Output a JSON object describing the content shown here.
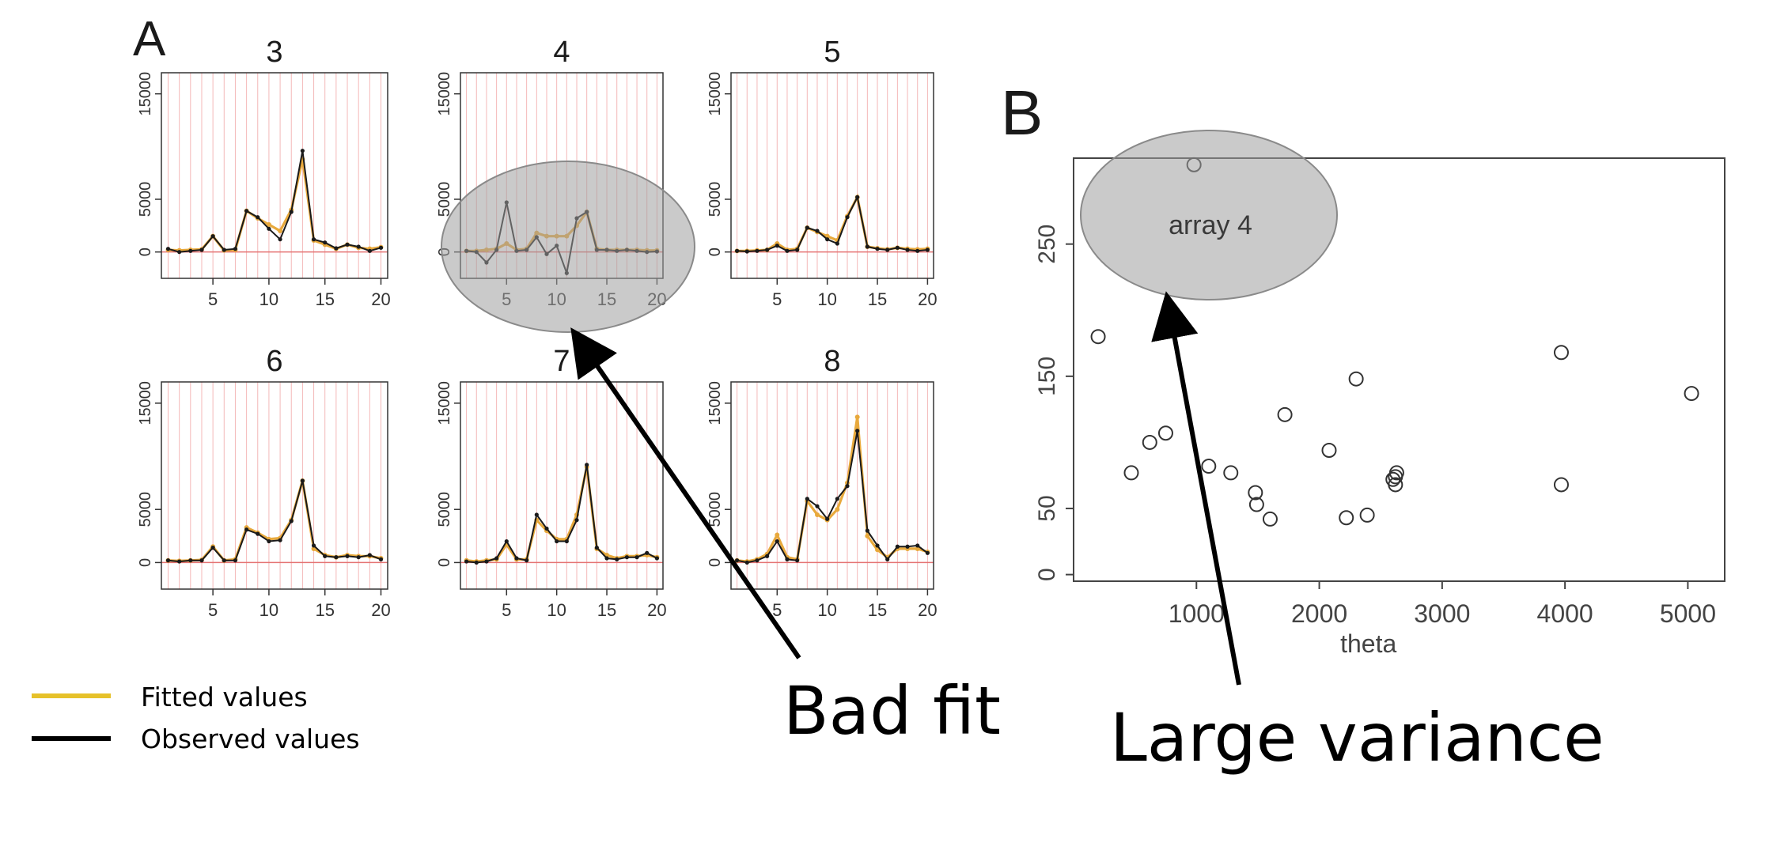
{
  "panels": {
    "a": {
      "label": "A"
    },
    "b": {
      "label": "B"
    }
  },
  "colors": {
    "fitted": "#E8A93C",
    "observed": "#1a1a1a",
    "legend_fitted": "#E6C12A",
    "highlight": "#BDBDBD"
  },
  "legend": {
    "fitted": "Fitted values",
    "observed": "Observed values"
  },
  "annotations": {
    "bad_fit": "Bad fit",
    "large_variance": "Large variance",
    "array_label": "array 4"
  },
  "chart_data": [
    {
      "type": "line",
      "title": "3",
      "x": [
        1,
        2,
        3,
        4,
        5,
        6,
        7,
        8,
        9,
        10,
        11,
        12,
        13,
        14,
        15,
        16,
        17,
        18,
        19,
        20
      ],
      "ylim": [
        -2500,
        17000
      ],
      "yticks": [
        "0",
        "5000",
        "15000"
      ],
      "xticks": [
        "5",
        "10",
        "15",
        "20"
      ],
      "series": [
        {
          "key": "fitted",
          "values": [
            200,
            150,
            200,
            250,
            1500,
            150,
            200,
            3900,
            3200,
            2600,
            2000,
            4000,
            8800,
            1100,
            700,
            300,
            700,
            400,
            300,
            450
          ]
        },
        {
          "key": "observed",
          "values": [
            300,
            0,
            100,
            200,
            1500,
            200,
            300,
            3900,
            3300,
            2200,
            1200,
            3800,
            9600,
            1200,
            900,
            350,
            700,
            500,
            100,
            400
          ]
        }
      ]
    },
    {
      "type": "line",
      "title": "4",
      "x": [
        1,
        2,
        3,
        4,
        5,
        6,
        7,
        8,
        9,
        10,
        11,
        12,
        13,
        14,
        15,
        16,
        17,
        18,
        19,
        20
      ],
      "ylim": [
        -2500,
        17000
      ],
      "yticks": [
        "0",
        "5000",
        "15000"
      ],
      "xticks": [
        "5",
        "10",
        "15",
        "20"
      ],
      "series": [
        {
          "key": "fitted",
          "values": [
            100,
            100,
            200,
            300,
            800,
            200,
            300,
            1800,
            1500,
            1500,
            1500,
            2500,
            3800,
            300,
            200,
            200,
            200,
            200,
            150,
            150
          ]
        },
        {
          "key": "observed",
          "values": [
            100,
            0,
            -1000,
            200,
            4700,
            100,
            200,
            1400,
            -200,
            600,
            -2000,
            3200,
            3800,
            200,
            200,
            100,
            200,
            100,
            0,
            50
          ]
        }
      ]
    },
    {
      "type": "line",
      "title": "5",
      "x": [
        1,
        2,
        3,
        4,
        5,
        6,
        7,
        8,
        9,
        10,
        11,
        12,
        13,
        14,
        15,
        16,
        17,
        18,
        19,
        20
      ],
      "ylim": [
        -2500,
        17000
      ],
      "yticks": [
        "0",
        "5000",
        "15000"
      ],
      "xticks": [
        "5",
        "10",
        "15",
        "20"
      ],
      "series": [
        {
          "key": "fitted",
          "values": [
            100,
            100,
            150,
            200,
            800,
            200,
            300,
            2300,
            1900,
            1500,
            1100,
            3400,
            5200,
            500,
            350,
            250,
            400,
            300,
            250,
            300
          ]
        },
        {
          "key": "observed",
          "values": [
            100,
            50,
            100,
            200,
            600,
            100,
            200,
            2300,
            2000,
            1200,
            800,
            3300,
            5200,
            500,
            300,
            200,
            400,
            200,
            100,
            200
          ]
        }
      ]
    },
    {
      "type": "line",
      "title": "6",
      "x": [
        1,
        2,
        3,
        4,
        5,
        6,
        7,
        8,
        9,
        10,
        11,
        12,
        13,
        14,
        15,
        16,
        17,
        18,
        19,
        20
      ],
      "ylim": [
        -2500,
        17000
      ],
      "yticks": [
        "0",
        "5000",
        "15000"
      ],
      "xticks": [
        "5",
        "10",
        "15",
        "20"
      ],
      "series": [
        {
          "key": "fitted",
          "values": [
            200,
            150,
            200,
            250,
            1500,
            200,
            300,
            3300,
            2800,
            2200,
            2300,
            4000,
            7700,
            1300,
            700,
            500,
            700,
            600,
            600,
            400
          ]
        },
        {
          "key": "observed",
          "values": [
            200,
            100,
            200,
            200,
            1400,
            200,
            200,
            3100,
            2700,
            2000,
            2100,
            3900,
            7700,
            1600,
            600,
            500,
            600,
            500,
            700,
            300
          ]
        }
      ]
    },
    {
      "type": "line",
      "title": "7",
      "x": [
        1,
        2,
        3,
        4,
        5,
        6,
        7,
        8,
        9,
        10,
        11,
        12,
        13,
        14,
        15,
        16,
        17,
        18,
        19,
        20
      ],
      "ylim": [
        -2500,
        17000
      ],
      "yticks": [
        "0",
        "5000",
        "15000"
      ],
      "xticks": [
        "5",
        "10",
        "15",
        "20"
      ],
      "series": [
        {
          "key": "fitted",
          "values": [
            200,
            100,
            200,
            300,
            1700,
            300,
            300,
            4000,
            3000,
            2200,
            2200,
            4500,
            9000,
            1300,
            700,
            400,
            600,
            600,
            700,
            500
          ]
        },
        {
          "key": "observed",
          "values": [
            100,
            0,
            100,
            400,
            2000,
            400,
            200,
            4500,
            3200,
            2000,
            2000,
            4000,
            9200,
            1400,
            400,
            300,
            500,
            500,
            900,
            400
          ]
        }
      ]
    },
    {
      "type": "line",
      "title": "8",
      "x": [
        1,
        2,
        3,
        4,
        5,
        6,
        7,
        8,
        9,
        10,
        11,
        12,
        13,
        14,
        15,
        16,
        17,
        18,
        19,
        20
      ],
      "ylim": [
        -2500,
        17000
      ],
      "yticks": [
        "0",
        "5000",
        "15000"
      ],
      "xticks": [
        "5",
        "10",
        "15",
        "20"
      ],
      "series": [
        {
          "key": "fitted",
          "values": [
            200,
            100,
            300,
            800,
            2600,
            500,
            300,
            5800,
            4500,
            4000,
            5000,
            7500,
            13700,
            2500,
            1200,
            500,
            1300,
            1300,
            1300,
            1000
          ]
        },
        {
          "key": "observed",
          "values": [
            200,
            0,
            200,
            600,
            2000,
            300,
            200,
            6000,
            5300,
            4100,
            6000,
            7200,
            12400,
            3000,
            1600,
            300,
            1500,
            1500,
            1600,
            900
          ]
        }
      ]
    },
    {
      "type": "scatter",
      "xlabel": "theta",
      "xlim": [
        0,
        5300
      ],
      "ylim": [
        -5,
        315
      ],
      "xticks": [
        "1000",
        "2000",
        "3000",
        "4000",
        "5000"
      ],
      "yticks": [
        "0",
        "50",
        "150",
        "250"
      ],
      "points": [
        {
          "x": 200,
          "y": 180
        },
        {
          "x": 470,
          "y": 77
        },
        {
          "x": 620,
          "y": 100
        },
        {
          "x": 750,
          "y": 107
        },
        {
          "x": 980,
          "y": 310
        },
        {
          "x": 1100,
          "y": 82
        },
        {
          "x": 1280,
          "y": 77
        },
        {
          "x": 1480,
          "y": 62
        },
        {
          "x": 1490,
          "y": 53
        },
        {
          "x": 1600,
          "y": 42
        },
        {
          "x": 1720,
          "y": 121
        },
        {
          "x": 2080,
          "y": 94
        },
        {
          "x": 2220,
          "y": 43
        },
        {
          "x": 2300,
          "y": 148
        },
        {
          "x": 2390,
          "y": 45
        },
        {
          "x": 2600,
          "y": 72
        },
        {
          "x": 2620,
          "y": 74
        },
        {
          "x": 2620,
          "y": 68
        },
        {
          "x": 2630,
          "y": 77
        },
        {
          "x": 3970,
          "y": 68
        },
        {
          "x": 3970,
          "y": 168
        },
        {
          "x": 5030,
          "y": 137
        }
      ]
    }
  ]
}
